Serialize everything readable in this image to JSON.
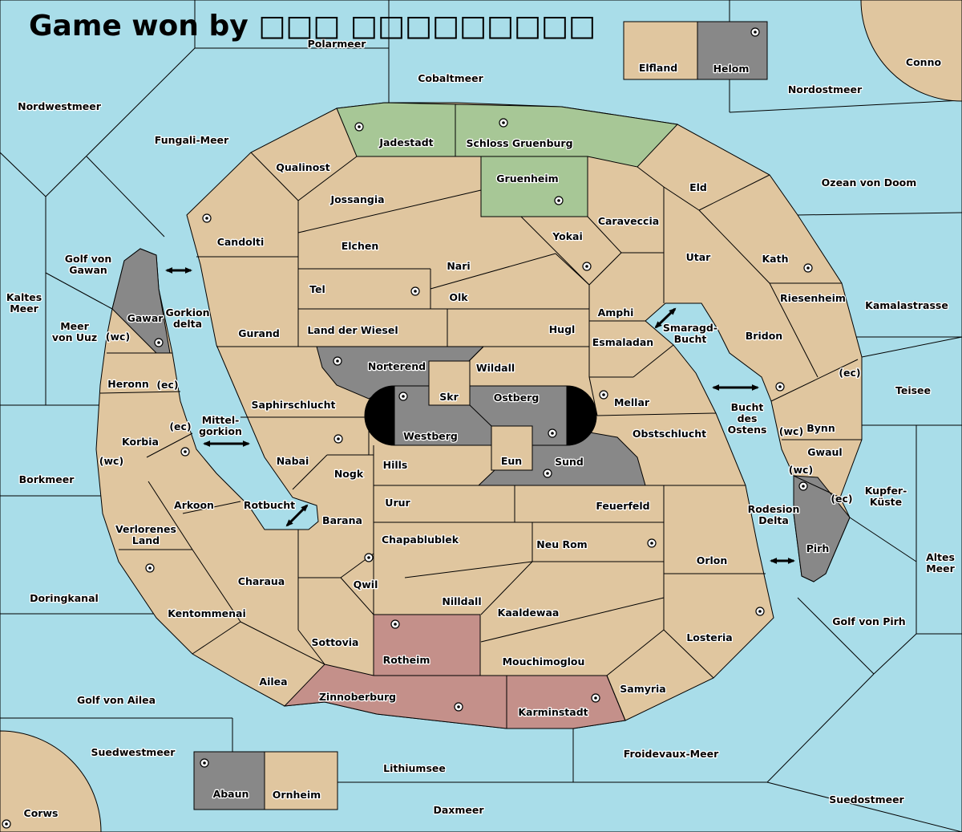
{
  "title": "Game won by □□□ □□□□□□□□□",
  "colors": {
    "sea": "#a9dde9",
    "land": "#e0c69f",
    "grey": "#888888",
    "green": "#a7c796",
    "red": "#c4908a",
    "black": "#000000"
  },
  "supply_center_icon": "dot-in-circle-icon",
  "convoy_arrow_icon": "double-arrow-icon",
  "labels": [
    "Polarmeer",
    "Cobaltmeer",
    "Nordwestmeer",
    "Fungali-Meer",
    "Elfland",
    "Helom",
    "Conno",
    "Nordostmeer",
    "Jadestadt",
    "Schloss Gruenburg",
    "Qualinost",
    "Gruenheim",
    "Eld",
    "Ozean von Doom",
    "Jossangia",
    "Caraveccia",
    "Candolti",
    "Elchen",
    "Yokai",
    "Utar",
    "Kath",
    "Golf von\nGawan",
    "Nari",
    "Tel",
    "Olk",
    "Riesenheim",
    "Kamalastrasse",
    "Kaltes\nMeer",
    "Amphi",
    "Gawar",
    "Gorkion\ndelta",
    "Meer\nvon Uuz",
    "(wc)",
    "Smaragd-\nBucht",
    "Land der Wiesel",
    "Gurand",
    "Hugl",
    "Bridon",
    "Esmaladan",
    "Norterend",
    "Wildall",
    "(ec)",
    "Heronn",
    "(ec)",
    "Teisee",
    "Skr",
    "Ostberg",
    "Mellar",
    "Saphirschlucht",
    "Bucht\ndes\nOstens",
    "Mittel-\ngorkion",
    "(ec)",
    "(wc)",
    "Bynn",
    "Obstschlucht",
    "Westberg",
    "Korbia",
    "Nabai",
    "Gwaul",
    "Eun",
    "Sund",
    "(wc)",
    "Hills",
    "(wc)",
    "Nogk",
    "Borkmeer",
    "Kupfer-\nKüste",
    "(ec)",
    "Urur",
    "Feuerfeld",
    "Arkoon",
    "Rotbucht",
    "Rodesion\nDelta",
    "Barana",
    "Verlorenes\nLand",
    "Chapablublek",
    "Neu Rom",
    "Pirh",
    "Altes\nMeer",
    "Orlon",
    "Charaua",
    "Qwil",
    "Doringkanal",
    "Nilldall",
    "Kaaldewaa",
    "Kentommenai",
    "Golf von Pirh",
    "Losteria",
    "Sottovia",
    "Rotheim",
    "Mouchimoglou",
    "Ailea",
    "Samyria",
    "Zinnoberburg",
    "Golf von Ailea",
    "Karminstadt",
    "Suedwestmeer",
    "Froidevaux-Meer",
    "Lithiumsee",
    "Abaun",
    "Ornheim",
    "Suedostmeer",
    "Daxmeer",
    "Corws"
  ]
}
